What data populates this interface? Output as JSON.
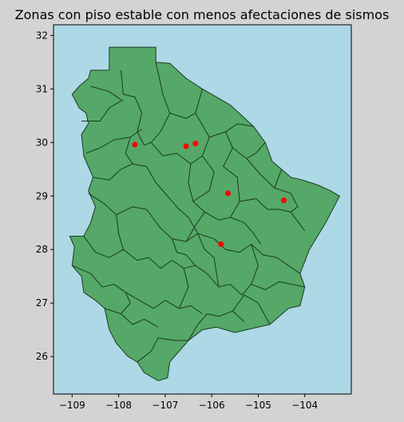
{
  "chart_data": {
    "type": "map",
    "title": "Zonas con piso estable con menos afectaciones de sismos",
    "xlabel": "",
    "ylabel": "",
    "xlim": [
      -109.4,
      -103.0
    ],
    "ylim": [
      25.3,
      32.2
    ],
    "x_ticks": [
      -109,
      -108,
      -107,
      -106,
      -105,
      -104
    ],
    "y_ticks": [
      26,
      27,
      28,
      29,
      30,
      31,
      32
    ],
    "x_tick_labels": [
      "−109",
      "−108",
      "−107",
      "−106",
      "−105",
      "−104"
    ],
    "y_tick_labels": [
      "26",
      "27",
      "28",
      "29",
      "30",
      "31",
      "32"
    ],
    "grid": false,
    "colors": {
      "figure_bg": "#d3d3d3",
      "plot_bg": "#add8e6",
      "region_fill": "#55a868",
      "region_edge": "#1b3a22",
      "point": "#ff0000"
    },
    "points": [
      {
        "x": -107.65,
        "y": 29.96
      },
      {
        "x": -106.55,
        "y": 29.93
      },
      {
        "x": -106.35,
        "y": 29.98
      },
      {
        "x": -105.65,
        "y": 29.05
      },
      {
        "x": -104.45,
        "y": 28.92
      },
      {
        "x": -105.8,
        "y": 28.1
      }
    ],
    "outline": [
      [
        -108.2,
        31.78
      ],
      [
        -107.2,
        31.78
      ],
      [
        -107.2,
        31.5
      ],
      [
        -106.9,
        31.48
      ],
      [
        -106.55,
        31.2
      ],
      [
        -106.2,
        31.0
      ],
      [
        -105.6,
        30.7
      ],
      [
        -105.1,
        30.3
      ],
      [
        -104.85,
        30.0
      ],
      [
        -104.7,
        29.65
      ],
      [
        -104.5,
        29.5
      ],
      [
        -104.3,
        29.35
      ],
      [
        -104.05,
        29.3
      ],
      [
        -103.7,
        29.2
      ],
      [
        -103.45,
        29.1
      ],
      [
        -103.25,
        29.0
      ],
      [
        -103.55,
        28.5
      ],
      [
        -103.9,
        28.0
      ],
      [
        -104.1,
        27.55
      ],
      [
        -104.0,
        27.3
      ],
      [
        -104.1,
        26.95
      ],
      [
        -104.35,
        26.9
      ],
      [
        -104.75,
        26.6
      ],
      [
        -105.0,
        26.55
      ],
      [
        -105.5,
        26.45
      ],
      [
        -105.9,
        26.55
      ],
      [
        -106.2,
        26.5
      ],
      [
        -106.5,
        26.3
      ],
      [
        -106.9,
        25.9
      ],
      [
        -106.95,
        25.6
      ],
      [
        -107.15,
        25.55
      ],
      [
        -107.45,
        25.7
      ],
      [
        -107.6,
        25.9
      ],
      [
        -107.8,
        26.0
      ],
      [
        -108.05,
        26.25
      ],
      [
        -108.2,
        26.5
      ],
      [
        -108.3,
        26.9
      ],
      [
        -108.5,
        27.05
      ],
      [
        -108.75,
        27.2
      ],
      [
        -108.8,
        27.5
      ],
      [
        -109.0,
        27.7
      ],
      [
        -108.95,
        28.05
      ],
      [
        -109.05,
        28.25
      ],
      [
        -108.75,
        28.25
      ],
      [
        -108.6,
        28.5
      ],
      [
        -108.5,
        28.8
      ],
      [
        -108.65,
        29.1
      ],
      [
        -108.55,
        29.35
      ],
      [
        -108.75,
        29.75
      ],
      [
        -108.8,
        30.15
      ],
      [
        -108.65,
        30.35
      ],
      [
        -108.7,
        30.55
      ],
      [
        -108.85,
        30.65
      ],
      [
        -109.0,
        30.9
      ],
      [
        -108.85,
        31.05
      ],
      [
        -108.65,
        31.2
      ],
      [
        -108.6,
        31.35
      ],
      [
        -108.2,
        31.35
      ]
    ],
    "boundaries": [
      [
        [
          -107.95,
          31.35
        ],
        [
          -107.9,
          30.9
        ],
        [
          -107.65,
          30.85
        ],
        [
          -107.5,
          30.55
        ],
        [
          -107.6,
          30.2
        ],
        [
          -107.45,
          29.95
        ]
      ],
      [
        [
          -108.6,
          31.05
        ],
        [
          -108.2,
          30.95
        ],
        [
          -107.95,
          30.8
        ]
      ],
      [
        [
          -108.8,
          30.4
        ],
        [
          -108.4,
          30.4
        ],
        [
          -108.2,
          30.65
        ],
        [
          -107.9,
          30.8
        ]
      ],
      [
        [
          -108.7,
          29.8
        ],
        [
          -108.4,
          29.9
        ],
        [
          -108.1,
          30.05
        ],
        [
          -107.75,
          30.1
        ],
        [
          -107.5,
          30.25
        ]
      ],
      [
        [
          -108.55,
          29.35
        ],
        [
          -108.2,
          29.3
        ],
        [
          -107.95,
          29.5
        ],
        [
          -107.7,
          29.6
        ],
        [
          -107.4,
          29.55
        ],
        [
          -107.2,
          29.25
        ]
      ],
      [
        [
          -108.65,
          29.05
        ],
        [
          -108.3,
          28.85
        ],
        [
          -108.05,
          28.65
        ],
        [
          -107.7,
          28.8
        ],
        [
          -107.4,
          28.75
        ]
      ],
      [
        [
          -108.75,
          28.25
        ],
        [
          -108.5,
          27.95
        ],
        [
          -108.2,
          27.85
        ],
        [
          -107.9,
          28.0
        ],
        [
          -107.6,
          27.8
        ],
        [
          -107.35,
          27.85
        ]
      ],
      [
        [
          -109.0,
          27.7
        ],
        [
          -108.6,
          27.55
        ],
        [
          -108.35,
          27.3
        ],
        [
          -108.1,
          27.35
        ],
        [
          -107.85,
          27.2
        ],
        [
          -107.55,
          27.05
        ]
      ],
      [
        [
          -108.3,
          26.9
        ],
        [
          -107.95,
          26.8
        ],
        [
          -107.7,
          26.6
        ],
        [
          -107.45,
          26.7
        ],
        [
          -107.15,
          26.55
        ]
      ],
      [
        [
          -107.6,
          25.9
        ],
        [
          -107.3,
          26.1
        ],
        [
          -107.15,
          26.35
        ],
        [
          -106.8,
          26.3
        ],
        [
          -106.5,
          26.3
        ]
      ],
      [
        [
          -107.2,
          31.5
        ],
        [
          -107.05,
          30.9
        ],
        [
          -106.9,
          30.55
        ],
        [
          -106.55,
          30.45
        ],
        [
          -106.35,
          30.55
        ],
        [
          -106.2,
          31.0
        ]
      ],
      [
        [
          -106.9,
          30.55
        ],
        [
          -107.1,
          30.2
        ],
        [
          -107.3,
          30.0
        ],
        [
          -107.45,
          29.95
        ]
      ],
      [
        [
          -107.3,
          30.0
        ],
        [
          -107.05,
          29.75
        ],
        [
          -106.75,
          29.8
        ],
        [
          -106.45,
          29.6
        ],
        [
          -106.2,
          29.75
        ],
        [
          -106.05,
          30.1
        ],
        [
          -106.35,
          30.55
        ]
      ],
      [
        [
          -106.05,
          30.1
        ],
        [
          -105.7,
          30.2
        ],
        [
          -105.45,
          30.35
        ],
        [
          -105.1,
          30.3
        ]
      ],
      [
        [
          -105.7,
          30.2
        ],
        [
          -105.55,
          29.9
        ],
        [
          -105.25,
          29.7
        ],
        [
          -105.05,
          29.8
        ],
        [
          -104.85,
          30.0
        ]
      ],
      [
        [
          -106.45,
          29.6
        ],
        [
          -106.5,
          29.25
        ],
        [
          -106.4,
          28.9
        ],
        [
          -106.15,
          28.7
        ],
        [
          -105.85,
          28.55
        ]
      ],
      [
        [
          -105.55,
          29.9
        ],
        [
          -105.75,
          29.55
        ],
        [
          -105.45,
          29.35
        ],
        [
          -105.4,
          28.9
        ],
        [
          -105.6,
          28.6
        ],
        [
          -105.85,
          28.55
        ]
      ],
      [
        [
          -105.4,
          28.9
        ],
        [
          -105.05,
          28.95
        ],
        [
          -104.8,
          28.75
        ],
        [
          -104.55,
          28.75
        ],
        [
          -104.3,
          28.7
        ],
        [
          -104.0,
          28.35
        ]
      ],
      [
        [
          -105.25,
          29.7
        ],
        [
          -104.95,
          29.4
        ],
        [
          -104.65,
          29.15
        ],
        [
          -104.5,
          29.5
        ]
      ],
      [
        [
          -104.65,
          29.15
        ],
        [
          -104.3,
          29.05
        ],
        [
          -104.15,
          28.8
        ],
        [
          -104.3,
          28.7
        ]
      ],
      [
        [
          -107.2,
          29.25
        ],
        [
          -106.95,
          29.0
        ],
        [
          -106.7,
          28.75
        ],
        [
          -106.5,
          28.6
        ],
        [
          -106.3,
          28.3
        ],
        [
          -105.95,
          28.2
        ]
      ],
      [
        [
          -107.4,
          28.75
        ],
        [
          -107.1,
          28.4
        ],
        [
          -106.85,
          28.2
        ],
        [
          -106.55,
          28.15
        ],
        [
          -106.3,
          28.3
        ]
      ],
      [
        [
          -107.35,
          27.85
        ],
        [
          -107.1,
          27.65
        ],
        [
          -106.85,
          27.8
        ],
        [
          -106.6,
          27.65
        ],
        [
          -106.35,
          27.7
        ],
        [
          -106.1,
          27.55
        ]
      ],
      [
        [
          -107.55,
          27.05
        ],
        [
          -107.25,
          26.9
        ],
        [
          -107.0,
          27.05
        ],
        [
          -106.7,
          26.9
        ],
        [
          -106.45,
          26.95
        ],
        [
          -106.2,
          26.8
        ]
      ],
      [
        [
          -106.5,
          26.3
        ],
        [
          -106.3,
          26.6
        ],
        [
          -106.1,
          26.8
        ],
        [
          -105.85,
          26.75
        ],
        [
          -105.55,
          26.85
        ],
        [
          -105.3,
          26.65
        ]
      ],
      [
        [
          -105.95,
          28.2
        ],
        [
          -105.7,
          28.0
        ],
        [
          -105.4,
          27.95
        ],
        [
          -105.15,
          28.1
        ],
        [
          -104.9,
          27.9
        ],
        [
          -104.6,
          27.85
        ],
        [
          -104.1,
          27.55
        ]
      ],
      [
        [
          -106.1,
          27.55
        ],
        [
          -105.85,
          27.3
        ],
        [
          -105.6,
          27.35
        ],
        [
          -105.35,
          27.15
        ],
        [
          -105.15,
          27.35
        ],
        [
          -104.85,
          27.25
        ],
        [
          -104.55,
          27.4
        ],
        [
          -104.0,
          27.3
        ]
      ],
      [
        [
          -105.55,
          26.85
        ],
        [
          -105.3,
          27.15
        ],
        [
          -105.0,
          27.0
        ],
        [
          -104.75,
          26.6
        ]
      ],
      [
        [
          -106.85,
          28.2
        ],
        [
          -106.75,
          27.95
        ],
        [
          -106.55,
          27.9
        ],
        [
          -106.35,
          27.7
        ]
      ],
      [
        [
          -106.55,
          28.15
        ],
        [
          -106.35,
          28.45
        ],
        [
          -106.15,
          28.7
        ]
      ],
      [
        [
          -105.6,
          28.6
        ],
        [
          -105.3,
          28.5
        ],
        [
          -105.1,
          28.3
        ],
        [
          -104.95,
          28.1
        ]
      ],
      [
        [
          -106.3,
          28.3
        ],
        [
          -106.15,
          28.0
        ],
        [
          -105.95,
          27.85
        ],
        [
          -105.85,
          27.3
        ]
      ],
      [
        [
          -107.75,
          30.1
        ],
        [
          -107.85,
          29.8
        ],
        [
          -107.7,
          29.6
        ]
      ],
      [
        [
          -106.2,
          29.75
        ],
        [
          -105.95,
          29.45
        ],
        [
          -106.05,
          29.1
        ],
        [
          -106.4,
          28.9
        ]
      ],
      [
        [
          -108.05,
          28.65
        ],
        [
          -108.0,
          28.3
        ],
        [
          -107.9,
          28.0
        ]
      ],
      [
        [
          -106.6,
          27.65
        ],
        [
          -106.5,
          27.3
        ],
        [
          -106.7,
          26.9
        ]
      ],
      [
        [
          -107.95,
          26.8
        ],
        [
          -107.75,
          27.0
        ],
        [
          -107.85,
          27.2
        ]
      ],
      [
        [
          -105.15,
          28.1
        ],
        [
          -105.0,
          27.7
        ],
        [
          -105.15,
          27.35
        ]
      ]
    ]
  }
}
